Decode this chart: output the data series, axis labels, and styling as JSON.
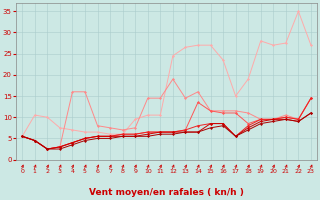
{
  "background_color": "#cce8e4",
  "grid_color": "#aacccc",
  "xlabel": "Vent moyen/en rafales ( kn/h )",
  "xlabel_color": "#cc0000",
  "xlabel_fontsize": 6.5,
  "ylabel_ticks": [
    0,
    5,
    10,
    15,
    20,
    25,
    30,
    35
  ],
  "xticks": [
    0,
    1,
    2,
    3,
    4,
    5,
    6,
    7,
    8,
    9,
    10,
    11,
    12,
    13,
    14,
    15,
    16,
    17,
    18,
    19,
    20,
    21,
    22,
    23
  ],
  "xlim": [
    -0.5,
    23.5
  ],
  "ylim": [
    0,
    37
  ],
  "series": [
    {
      "x": [
        0,
        1,
        2,
        3,
        4,
        5,
        6,
        7,
        8,
        9,
        10,
        11,
        12,
        13,
        14,
        15,
        16,
        17,
        18,
        19,
        20,
        21,
        22,
        23
      ],
      "y": [
        5.5,
        10.5,
        10.0,
        7.5,
        7.0,
        6.5,
        6.5,
        6.0,
        6.0,
        9.5,
        10.5,
        10.5,
        24.5,
        26.5,
        27.0,
        27.0,
        23.5,
        15.0,
        19.0,
        28.0,
        27.0,
        27.5,
        35.0,
        27.0
      ],
      "color": "#ffaaaa",
      "marker": "D",
      "markersize": 1.5,
      "linewidth": 0.7
    },
    {
      "x": [
        0,
        1,
        2,
        3,
        4,
        5,
        6,
        7,
        8,
        9,
        10,
        11,
        12,
        13,
        14,
        15,
        16,
        17,
        18,
        19,
        20,
        21,
        22,
        23
      ],
      "y": [
        5.5,
        4.5,
        2.5,
        3.0,
        16.0,
        16.0,
        8.0,
        7.5,
        7.0,
        7.5,
        14.5,
        14.5,
        19.0,
        14.5,
        16.0,
        11.5,
        11.5,
        11.5,
        11.0,
        9.5,
        9.5,
        10.5,
        9.5,
        14.5
      ],
      "color": "#ff8888",
      "marker": "D",
      "markersize": 1.5,
      "linewidth": 0.7
    },
    {
      "x": [
        0,
        1,
        2,
        3,
        4,
        5,
        6,
        7,
        8,
        9,
        10,
        11,
        12,
        13,
        14,
        15,
        16,
        17,
        18,
        19,
        20,
        21,
        22,
        23
      ],
      "y": [
        5.5,
        4.5,
        2.5,
        3.0,
        4.0,
        5.0,
        5.5,
        5.5,
        6.0,
        6.0,
        6.5,
        6.5,
        6.5,
        7.0,
        13.5,
        11.5,
        11.0,
        11.0,
        8.5,
        9.5,
        9.5,
        10.0,
        9.5,
        14.5
      ],
      "color": "#ff5555",
      "marker": "D",
      "markersize": 1.5,
      "linewidth": 0.7
    },
    {
      "x": [
        0,
        1,
        2,
        3,
        4,
        5,
        6,
        7,
        8,
        9,
        10,
        11,
        12,
        13,
        14,
        15,
        16,
        17,
        18,
        19,
        20,
        21,
        22,
        23
      ],
      "y": [
        5.5,
        4.5,
        2.5,
        3.0,
        4.0,
        5.0,
        5.5,
        5.5,
        6.0,
        6.0,
        6.5,
        6.5,
        6.5,
        7.0,
        8.0,
        8.5,
        8.5,
        5.5,
        8.0,
        9.5,
        9.5,
        10.0,
        9.5,
        14.5
      ],
      "color": "#ee2222",
      "marker": "D",
      "markersize": 1.5,
      "linewidth": 0.7
    },
    {
      "x": [
        0,
        1,
        2,
        3,
        4,
        5,
        6,
        7,
        8,
        9,
        10,
        11,
        12,
        13,
        14,
        15,
        16,
        17,
        18,
        19,
        20,
        21,
        22,
        23
      ],
      "y": [
        5.5,
        4.5,
        2.5,
        3.0,
        4.0,
        5.0,
        5.5,
        5.5,
        5.5,
        5.5,
        6.0,
        6.5,
        6.5,
        6.5,
        6.5,
        8.5,
        8.5,
        5.5,
        7.5,
        9.0,
        9.5,
        9.5,
        9.0,
        11.0
      ],
      "color": "#cc0000",
      "marker": "D",
      "markersize": 1.5,
      "linewidth": 0.7
    },
    {
      "x": [
        0,
        1,
        2,
        3,
        4,
        5,
        6,
        7,
        8,
        9,
        10,
        11,
        12,
        13,
        14,
        15,
        16,
        17,
        18,
        19,
        20,
        21,
        22,
        23
      ],
      "y": [
        5.5,
        4.5,
        2.5,
        2.5,
        3.5,
        4.5,
        5.0,
        5.0,
        5.5,
        5.5,
        5.5,
        6.0,
        6.0,
        6.5,
        6.5,
        7.5,
        8.0,
        5.5,
        7.0,
        8.5,
        9.0,
        9.5,
        9.0,
        11.0
      ],
      "color": "#aa0000",
      "marker": "D",
      "markersize": 1.5,
      "linewidth": 0.7
    }
  ],
  "arrow_color": "#cc0000",
  "tick_color": "#cc0000",
  "tick_fontsize": 4.5,
  "ytick_fontsize": 5.0
}
